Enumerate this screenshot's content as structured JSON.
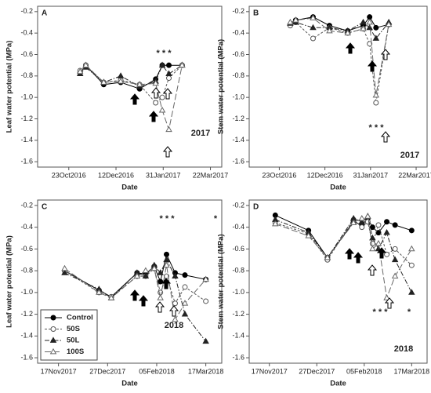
{
  "chart_data": [
    {
      "type": "line",
      "panel": "A",
      "y_label": "Leaf water potential (MPa)",
      "x_label": "Date",
      "xlim": [
        "2016-09-20",
        "2017-04-03"
      ],
      "xticks": [
        {
          "value": "2016-10-23",
          "label": "23Oct2016"
        },
        {
          "value": "2016-12-12",
          "label": "12Dec2016"
        },
        {
          "value": "2017-01-31",
          "label": "31Jan2017"
        },
        {
          "value": "2017-03-22",
          "label": "22Mar2017"
        }
      ],
      "ylim": [
        -1.65,
        -0.15
      ],
      "yticks": [
        -0.2,
        -0.4,
        -0.6,
        -0.8,
        {
          "value": -1,
          "label": "-1.0"
        },
        -1.2,
        -1.4,
        -1.6
      ],
      "x": [
        "2016-11-04",
        "2016-11-10",
        "2016-11-29",
        "2016-12-17",
        "2017-01-06",
        "2017-01-23",
        "2017-01-30",
        "2017-02-06",
        "2017-02-20"
      ],
      "series": [
        {
          "name": "Control",
          "color": "#000000",
          "marker": "circle",
          "filled": true,
          "dash": "solid",
          "values": [
            -0.77,
            -0.7,
            -0.88,
            -0.86,
            -0.92,
            -0.83,
            -0.7,
            -0.7,
            -0.7
          ]
        },
        {
          "name": "50S",
          "color": "#555555",
          "marker": "circle",
          "filled": false,
          "dash": "dashed",
          "values": [
            -0.75,
            -0.7,
            -0.86,
            -0.84,
            -0.88,
            -1.05,
            -1.0,
            -0.82,
            -0.7
          ]
        },
        {
          "name": "50L",
          "color": "#222222",
          "marker": "triangle",
          "filled": true,
          "dash": "dashdot",
          "values": [
            -0.78,
            -0.72,
            -0.86,
            -0.8,
            -0.9,
            -0.85,
            -0.7,
            -0.78,
            -0.7
          ]
        },
        {
          "name": "100S",
          "color": "#666666",
          "marker": "triangle",
          "filled": false,
          "dash": "longdash",
          "values": [
            -0.76,
            -0.7,
            -0.86,
            -0.85,
            -0.88,
            -0.87,
            -1.12,
            -1.3,
            -0.7
          ]
        }
      ],
      "legend": false,
      "annotations": [
        "* * *",
        "2017"
      ]
    },
    {
      "type": "line",
      "panel": "B",
      "y_label": "Stem water potential (MPa)",
      "x_label": "Date",
      "xlim": [
        "2016-09-20",
        "2017-04-03"
      ],
      "xticks": [
        {
          "value": "2016-10-23",
          "label": "23Oct2016"
        },
        {
          "value": "2016-12-12",
          "label": "12Dec2016"
        },
        {
          "value": "2017-01-31",
          "label": "31Jan2017"
        },
        {
          "value": "2017-03-22",
          "label": "22Mar2017"
        }
      ],
      "ylim": [
        -1.65,
        -0.15
      ],
      "yticks": [
        -0.2,
        -0.4,
        -0.6,
        -0.8,
        {
          "value": -1,
          "label": "-1.0"
        },
        -1.2,
        -1.4,
        -1.6
      ],
      "x": [
        "2016-11-04",
        "2016-11-10",
        "2016-11-29",
        "2016-12-17",
        "2017-01-06",
        "2017-01-23",
        "2017-01-30",
        "2017-02-06",
        "2017-02-20"
      ],
      "series": [
        {
          "name": "Control",
          "color": "#000000",
          "marker": "circle",
          "filled": true,
          "dash": "solid",
          "values": [
            -0.32,
            -0.28,
            -0.25,
            -0.33,
            -0.38,
            -0.33,
            -0.25,
            -0.35,
            -0.32
          ]
        },
        {
          "name": "50S",
          "color": "#555555",
          "marker": "circle",
          "filled": false,
          "dash": "dashed",
          "values": [
            -0.33,
            -0.3,
            -0.45,
            -0.35,
            -0.4,
            -0.36,
            -0.5,
            -1.05,
            -0.32
          ]
        },
        {
          "name": "50L",
          "color": "#222222",
          "marker": "triangle",
          "filled": true,
          "dash": "dashdot",
          "values": [
            -0.31,
            -0.3,
            -0.35,
            -0.35,
            -0.38,
            -0.3,
            -0.35,
            -0.45,
            -0.3
          ]
        },
        {
          "name": "100S",
          "color": "#666666",
          "marker": "triangle",
          "filled": false,
          "dash": "longdash",
          "values": [
            -0.3,
            -0.28,
            -0.26,
            -0.38,
            -0.4,
            -0.36,
            -0.3,
            -0.98,
            -0.32
          ]
        }
      ],
      "legend": false,
      "annotations": [
        "* * *",
        "2017"
      ]
    },
    {
      "type": "line",
      "panel": "C",
      "y_label": "Leaf water potential (MPa)",
      "x_label": "Date",
      "xlim": [
        "2017-10-31",
        "2018-03-30"
      ],
      "xticks": [
        {
          "value": "2017-11-17",
          "label": "17Nov2017"
        },
        {
          "value": "2017-12-27",
          "label": "27Dec2017"
        },
        {
          "value": "2018-02-05",
          "label": "05Feb2018"
        },
        {
          "value": "2018-03-17",
          "label": "17Mar2018"
        }
      ],
      "ylim": [
        -1.65,
        -0.15
      ],
      "yticks": [
        -0.2,
        -0.4,
        -0.6,
        -0.8,
        {
          "value": -1,
          "label": "-1.0"
        },
        -1.2,
        -1.4,
        -1.6
      ],
      "x": [
        "2017-11-22",
        "2017-12-20",
        "2017-12-30",
        "2018-01-20",
        "2018-01-27",
        "2018-02-03",
        "2018-02-08",
        "2018-02-13",
        "2018-02-20",
        "2018-02-28",
        "2018-03-17"
      ],
      "series": [
        {
          "name": "Control",
          "color": "#000000",
          "marker": "circle",
          "filled": true,
          "dash": "solid",
          "values": [
            -0.8,
            -0.98,
            -1.04,
            -0.82,
            -0.83,
            -0.76,
            -0.9,
            -0.65,
            -0.82,
            -0.84,
            -0.88
          ]
        },
        {
          "name": "50S",
          "color": "#555555",
          "marker": "circle",
          "filled": false,
          "dash": "dashed",
          "values": [
            -0.8,
            -1.0,
            -1.04,
            -0.85,
            -0.85,
            -0.78,
            -1.0,
            -0.85,
            -1.1,
            -0.95,
            -1.08
          ]
        },
        {
          "name": "50L",
          "color": "#222222",
          "marker": "triangle",
          "filled": true,
          "dash": "dashdot",
          "values": [
            -0.82,
            -0.97,
            -1.05,
            -0.82,
            -0.85,
            -0.75,
            -0.82,
            -0.7,
            -0.85,
            -1.2,
            -1.45
          ]
        },
        {
          "name": "100S",
          "color": "#666666",
          "marker": "triangle",
          "filled": false,
          "dash": "longdash",
          "values": [
            -0.78,
            -1.0,
            -1.05,
            -0.85,
            -0.8,
            -0.78,
            -1.05,
            -0.75,
            -1.25,
            -1.1,
            -0.88
          ]
        }
      ],
      "legend": true,
      "annotations": [
        "* * *",
        "*",
        "2018"
      ]
    },
    {
      "type": "line",
      "panel": "D",
      "y_label": "Stem water potential (MPa)",
      "x_label": "Date",
      "xlim": [
        "2017-10-31",
        "2018-03-30"
      ],
      "xticks": [
        {
          "value": "2017-11-17",
          "label": "17Nov2017"
        },
        {
          "value": "2017-12-27",
          "label": "27Dec2017"
        },
        {
          "value": "2018-02-05",
          "label": "05Feb2018"
        },
        {
          "value": "2018-03-17",
          "label": "17Mar2018"
        }
      ],
      "ylim": [
        -1.65,
        -0.15
      ],
      "yticks": [
        -0.2,
        -0.4,
        -0.6,
        -0.8,
        {
          "value": -1,
          "label": "-1.0"
        },
        -1.2,
        -1.4,
        -1.6
      ],
      "x": [
        "2017-11-22",
        "2017-12-20",
        "2018-01-05",
        "2018-01-27",
        "2018-02-03",
        "2018-02-08",
        "2018-02-12",
        "2018-02-17",
        "2018-02-24",
        "2018-03-03",
        "2018-03-17"
      ],
      "series": [
        {
          "name": "Control",
          "color": "#000000",
          "marker": "circle",
          "filled": true,
          "dash": "solid",
          "values": [
            -0.29,
            -0.43,
            -0.68,
            -0.35,
            -0.38,
            -0.32,
            -0.4,
            -0.45,
            -0.35,
            -0.38,
            -0.43
          ]
        },
        {
          "name": "50S",
          "color": "#555555",
          "marker": "circle",
          "filled": false,
          "dash": "dashed",
          "values": [
            -0.36,
            -0.46,
            -0.7,
            -0.33,
            -0.4,
            -0.35,
            -0.55,
            -0.38,
            -0.65,
            -0.6,
            -0.75
          ]
        },
        {
          "name": "50L",
          "color": "#222222",
          "marker": "triangle",
          "filled": true,
          "dash": "dashdot",
          "values": [
            -0.33,
            -0.45,
            -0.68,
            -0.32,
            -0.35,
            -0.3,
            -0.5,
            -0.6,
            -0.45,
            -0.7,
            -1.0
          ]
        },
        {
          "name": "100S",
          "color": "#666666",
          "marker": "triangle",
          "filled": false,
          "dash": "longdash",
          "values": [
            -0.37,
            -0.48,
            -0.68,
            -0.36,
            -0.32,
            -0.3,
            -0.6,
            -0.55,
            -1.05,
            -0.85,
            -0.6
          ]
        }
      ],
      "legend": false,
      "annotations": [
        "* * *",
        "*",
        "2018"
      ]
    }
  ]
}
